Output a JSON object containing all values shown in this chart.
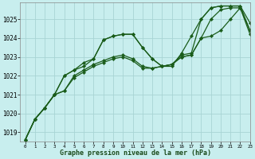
{
  "xlabel": "Graphe pression niveau de la mer (hPa)",
  "background_color": "#c8eeee",
  "grid_color": "#a8d4d4",
  "line_color": "#1a5c1a",
  "ylim": [
    1018.5,
    1025.9
  ],
  "xlim": [
    -0.5,
    23
  ],
  "yticks": [
    1019,
    1020,
    1021,
    1022,
    1023,
    1024,
    1025
  ],
  "xticks": [
    0,
    1,
    2,
    3,
    4,
    5,
    6,
    7,
    8,
    9,
    10,
    11,
    12,
    13,
    14,
    15,
    16,
    17,
    18,
    19,
    20,
    21,
    22,
    23
  ],
  "series": [
    [
      1018.6,
      1019.7,
      1020.3,
      1021.0,
      1022.0,
      1022.3,
      1022.7,
      1022.9,
      1023.9,
      1024.1,
      1024.2,
      1024.2,
      1023.5,
      1022.9,
      1022.5,
      1022.5,
      1023.2,
      1024.1,
      1025.0,
      1025.6,
      1025.7,
      1025.7,
      1025.7,
      1024.8
    ],
    [
      1018.6,
      1019.7,
      1020.3,
      1021.0,
      1022.0,
      1022.3,
      1022.5,
      1022.9,
      1023.9,
      1024.1,
      1024.2,
      1024.2,
      1023.5,
      1022.9,
      1022.5,
      1022.6,
      1023.1,
      1023.2,
      1025.0,
      1025.6,
      1025.7,
      1025.7,
      1025.7,
      1024.4
    ],
    [
      1018.6,
      1019.7,
      1020.3,
      1021.0,
      1021.2,
      1022.0,
      1022.3,
      1022.6,
      1022.8,
      1023.0,
      1023.1,
      1022.9,
      1022.5,
      1022.4,
      1022.5,
      1022.6,
      1023.0,
      1023.1,
      1024.0,
      1025.0,
      1025.5,
      1025.6,
      1025.6,
      1024.2
    ],
    [
      1018.6,
      1019.7,
      1020.3,
      1021.0,
      1021.2,
      1021.9,
      1022.2,
      1022.5,
      1022.7,
      1022.9,
      1023.0,
      1022.8,
      1022.4,
      1022.4,
      1022.5,
      1022.6,
      1023.0,
      1023.1,
      1024.0,
      1024.1,
      1024.4,
      1025.0,
      1025.6,
      1024.4
    ]
  ]
}
